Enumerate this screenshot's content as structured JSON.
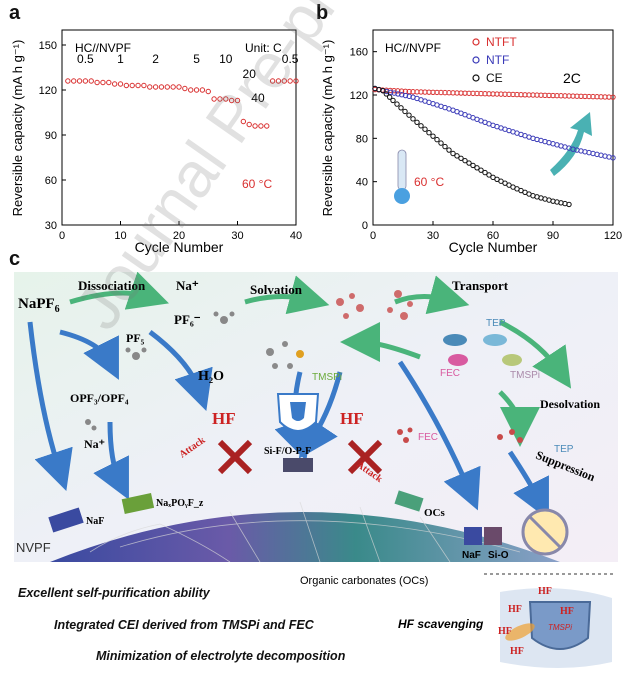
{
  "panels": {
    "a": "a",
    "b": "b",
    "c": "c"
  },
  "chart_data": [
    {
      "type": "scatter",
      "panel": "a",
      "title": "HC//NVPF",
      "unit_label": "Unit: C",
      "temperature_label": "60 °C",
      "xlabel": "Cycle Number",
      "ylabel": "Reversible capacity (mA h g⁻¹)",
      "xlim": [
        0,
        40
      ],
      "ylim": [
        30,
        160
      ],
      "xticks": [
        0,
        10,
        20,
        30,
        40
      ],
      "yticks": [
        30,
        60,
        90,
        120,
        150
      ],
      "rate_labels": [
        "0.5",
        "1",
        "2",
        "5",
        "10",
        "20",
        "40",
        "0.5"
      ],
      "series": [
        {
          "color": "#d93030",
          "x": [
            1,
            2,
            3,
            4,
            5,
            6,
            7,
            8,
            9,
            10,
            11,
            12,
            13,
            14,
            15,
            16,
            17,
            18,
            19,
            20,
            21,
            22,
            23,
            24,
            25,
            26,
            27,
            28,
            29,
            30,
            31,
            32,
            33,
            34,
            35,
            36,
            37,
            38,
            39,
            40
          ],
          "y": [
            126,
            126,
            126,
            126,
            126,
            125,
            125,
            125,
            124,
            124,
            123,
            123,
            123,
            123,
            122,
            122,
            122,
            122,
            122,
            122,
            121,
            120,
            120,
            120,
            119,
            114,
            114,
            114,
            113,
            113,
            99,
            97,
            96,
            96,
            96,
            126,
            126,
            126,
            126,
            126
          ]
        }
      ]
    },
    {
      "type": "scatter",
      "panel": "b",
      "title": "HC//NVPF",
      "rate_label": "2C",
      "temperature_label": "60 °C",
      "xlabel": "Cycle Number",
      "ylabel": "Reversible capacity (mA h g⁻¹)",
      "xlim": [
        0,
        120
      ],
      "ylim": [
        0,
        180
      ],
      "xticks": [
        0,
        30,
        60,
        90,
        120
      ],
      "yticks": [
        0,
        40,
        80,
        120,
        160
      ],
      "legend": "top-right",
      "series": [
        {
          "name": "NTFT",
          "color": "#d93030",
          "x": [
            1,
            20,
            40,
            60,
            80,
            100,
            120
          ],
          "y": [
            125,
            123,
            122,
            121,
            120,
            119,
            118
          ]
        },
        {
          "name": "NTF",
          "color": "#3a3ab8",
          "x": [
            1,
            5,
            20,
            40,
            60,
            80,
            100,
            120
          ],
          "y": [
            126,
            124,
            118,
            106,
            92,
            80,
            70,
            62
          ]
        },
        {
          "name": "CE",
          "color": "#111111",
          "x": [
            1,
            5,
            10,
            20,
            30,
            40,
            50,
            60,
            70,
            80,
            90,
            98
          ],
          "y": [
            126,
            124,
            115,
            98,
            82,
            66,
            55,
            44,
            35,
            27,
            22,
            19
          ]
        }
      ]
    }
  ],
  "schematic": {
    "naPF6": "NaPF",
    "naPF6_sub": "6",
    "dissociation": "Dissociation",
    "solvation": "Solvation",
    "transport": "Transport",
    "desolvation": "Desolvation",
    "suppression": "Suppression",
    "na_plus": "Na⁺",
    "pf6_minus": "PF₆⁻",
    "pf5": "PF₅",
    "h2o": "H₂O",
    "opf": "OPF₃/OPF₄",
    "na_plus2": "Na⁺",
    "hf1": "HF",
    "hf2": "HF",
    "attack1": "Attack",
    "attack2": "Attack",
    "tmspi1": "TMSPi",
    "tmspi2": "TMSPi",
    "tep1": "TEP",
    "tep2": "TEP",
    "fec1": "FEC",
    "fec2": "FEC",
    "naf1": "NaF",
    "naxpoyfz": "NaₓPOᵧF_z",
    "sif": "Si-F/O-P-F",
    "ocs": "OCs",
    "naf2": "NaF",
    "sio": "Si-O",
    "nvpf": "NVPF",
    "organic_carbonates": "Organic carbonates (OCs)",
    "hf_scavenging": "HF scavenging",
    "inset_hf": [
      "HF",
      "HF",
      "HF",
      "HF",
      "HF"
    ],
    "inset_tmspi": "TMSPi"
  },
  "captions": [
    "Excellent self-purification ability",
    "Integrated CEI derived from TMSPi and FEC",
    "Minimization of electrolyte decomposition"
  ],
  "watermark": "Journal Pre-proof",
  "colors": {
    "red": "#d93030",
    "blue": "#3a3ab8",
    "black": "#111111",
    "teal": "#2aa3a6"
  }
}
